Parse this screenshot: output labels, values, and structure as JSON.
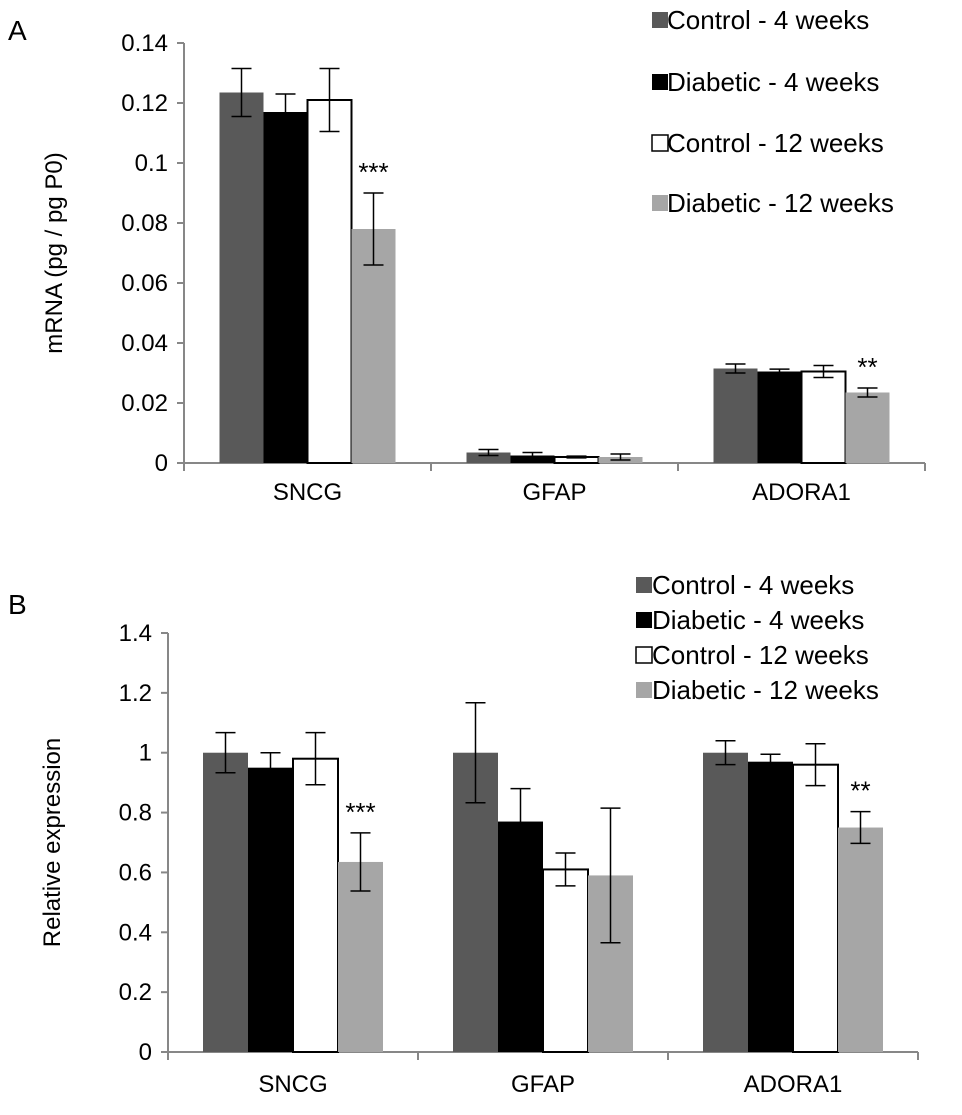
{
  "colors": {
    "control_4w": "#595959",
    "diabetic_4w": "#000000",
    "control_12w": "#ffffff",
    "diabetic_12w": "#a6a6a6",
    "axis": "#878787"
  },
  "chart_data": [
    {
      "panel": "A",
      "type": "bar",
      "title": "",
      "xlabel": "",
      "ylabel": "mRNA (pg / pg P0)",
      "ylim": [
        0,
        0.14
      ],
      "yticks": [
        "0",
        "0.02",
        "0.04",
        "0.06",
        "0.08",
        "0.1",
        "0.12",
        "0.14"
      ],
      "categories": [
        "SNCG",
        "GFAP",
        "ADORA1"
      ],
      "legend_position": "top-right",
      "series": [
        {
          "name": "Control - 4 weeks",
          "values": [
            0.1235,
            0.0035,
            0.0315
          ],
          "errors": [
            0.008,
            0.001,
            0.0015
          ]
        },
        {
          "name": "Diabetic - 4 weeks",
          "values": [
            0.117,
            0.0025,
            0.0305
          ],
          "errors": [
            0.006,
            0.001,
            0.0008
          ]
        },
        {
          "name": "Control - 12 weeks",
          "values": [
            0.121,
            0.002,
            0.0305
          ],
          "errors": [
            0.0105,
            0.0003,
            0.002
          ]
        },
        {
          "name": "Diabetic - 12 weeks",
          "values": [
            0.078,
            0.002,
            0.0235
          ],
          "errors": [
            0.012,
            0.001,
            0.0015
          ]
        }
      ],
      "annotations": [
        {
          "category": "SNCG",
          "text": "***"
        },
        {
          "category": "ADORA1",
          "text": "**"
        }
      ]
    },
    {
      "panel": "B",
      "type": "bar",
      "title": "",
      "xlabel": "",
      "ylabel": "Relative expression",
      "ylim": [
        0,
        1.4
      ],
      "yticks": [
        "0",
        "0.2",
        "0.4",
        "0.6",
        "0.8",
        "1",
        "1.2",
        "1.4"
      ],
      "categories": [
        "SNCG",
        "GFAP",
        "ADORA1"
      ],
      "legend_position": "top-right",
      "series": [
        {
          "name": "Control - 4 weeks",
          "values": [
            1.0,
            1.0,
            1.0
          ],
          "errors": [
            0.067,
            0.167,
            0.04
          ]
        },
        {
          "name": "Diabetic - 4 weeks",
          "values": [
            0.95,
            0.77,
            0.97
          ],
          "errors": [
            0.05,
            0.11,
            0.025
          ]
        },
        {
          "name": "Control - 12 weeks",
          "values": [
            0.98,
            0.61,
            0.96
          ],
          "errors": [
            0.087,
            0.055,
            0.07
          ]
        },
        {
          "name": "Diabetic - 12 weeks",
          "values": [
            0.635,
            0.59,
            0.75
          ],
          "errors": [
            0.097,
            0.225,
            0.053
          ]
        }
      ],
      "annotations": [
        {
          "category": "SNCG",
          "text": "***"
        },
        {
          "category": "ADORA1",
          "text": "**"
        }
      ]
    }
  ]
}
